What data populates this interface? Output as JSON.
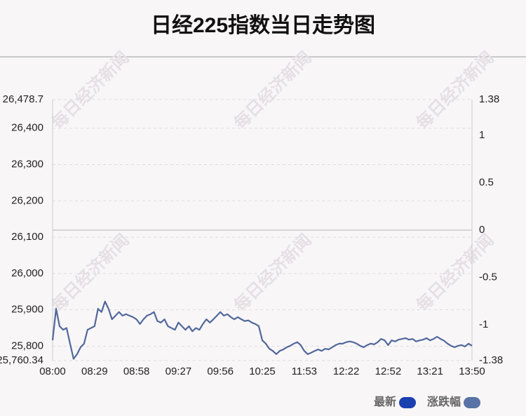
{
  "chart_data": {
    "type": "line",
    "title": "日经225指数当日走势图",
    "watermark": "每日经济新闻",
    "categories": [
      "08:00",
      null,
      null,
      null,
      null,
      null,
      null,
      null,
      null,
      null,
      null,
      null,
      "08:29",
      null,
      null,
      null,
      null,
      null,
      null,
      null,
      null,
      null,
      null,
      null,
      "08:58",
      null,
      null,
      null,
      null,
      null,
      null,
      null,
      null,
      null,
      null,
      null,
      "09:27",
      null,
      null,
      null,
      null,
      null,
      null,
      null,
      null,
      null,
      null,
      null,
      "09:56",
      null,
      null,
      null,
      null,
      null,
      null,
      null,
      null,
      null,
      null,
      null,
      "10:25",
      null,
      null,
      null,
      null,
      null,
      null,
      null,
      null,
      null,
      null,
      null,
      "11:53",
      null,
      null,
      null,
      null,
      null,
      null,
      null,
      null,
      null,
      null,
      null,
      "12:22",
      null,
      null,
      null,
      null,
      null,
      null,
      null,
      null,
      null,
      null,
      null,
      "12:52",
      null,
      null,
      null,
      null,
      null,
      null,
      null,
      null,
      null,
      null,
      null,
      "13:21",
      null,
      null,
      null,
      null,
      null,
      null,
      null,
      null,
      null,
      null,
      null,
      "13:50"
    ],
    "series": [
      {
        "name": "最新",
        "color": "#50689a",
        "values": [
          25816,
          25903,
          25855,
          25845,
          25850,
          25807,
          25765,
          25778,
          25797,
          25807,
          25845,
          25850,
          25855,
          25903,
          25894,
          25923,
          25903,
          25874,
          25884,
          25894,
          25884,
          25888,
          25884,
          25880,
          25874,
          25861,
          25874,
          25884,
          25888,
          25894,
          25869,
          25865,
          25874,
          25855,
          25850,
          25845,
          25865,
          25855,
          25845,
          25855,
          25841,
          25850,
          25845,
          25861,
          25874,
          25865,
          25874,
          25884,
          25894,
          25884,
          25888,
          25880,
          25874,
          25880,
          25874,
          25869,
          25871,
          25865,
          25861,
          25855,
          25816,
          25807,
          25793,
          25787,
          25778,
          25787,
          25791,
          25797,
          25801,
          25807,
          25811,
          25803,
          25787,
          25778,
          25782,
          25787,
          25791,
          25787,
          25793,
          25791,
          25797,
          25803,
          25807,
          25807,
          25811,
          25813,
          25811,
          25807,
          25801,
          25797,
          25803,
          25807,
          25805,
          25811,
          25820,
          25816,
          25803,
          25816,
          25813,
          25818,
          25820,
          25822,
          25818,
          25820,
          25813,
          25816,
          25818,
          25822,
          25816,
          25820,
          25826,
          25820,
          25815,
          25807,
          25801,
          25797,
          25801,
          25803,
          25799,
          25807,
          25801
        ]
      }
    ],
    "legend": [
      {
        "name": "最新",
        "color": "#1a3fae"
      },
      {
        "name": "涨跌幅",
        "color": "#5a73a6"
      }
    ],
    "ylim": [
      25760.34,
      26478.7
    ],
    "yticks": [
      {
        "value": 25760.34,
        "label": "25,760.34"
      },
      {
        "value": 25800,
        "label": "25,800"
      },
      {
        "value": 25900,
        "label": "25,900"
      },
      {
        "value": 26000,
        "label": "26,000"
      },
      {
        "value": 26100,
        "label": "26,100"
      },
      {
        "value": 26200,
        "label": "26,200"
      },
      {
        "value": 26300,
        "label": "26,300"
      },
      {
        "value": 26400,
        "label": "26,400"
      },
      {
        "value": 26478.7,
        "label": "26,478.7"
      }
    ],
    "y2lim": [
      -1.38,
      1.38
    ],
    "y2ticks": [
      -1.38,
      -1,
      -0.5,
      0,
      0.5,
      1,
      1.38
    ],
    "grid": true
  }
}
